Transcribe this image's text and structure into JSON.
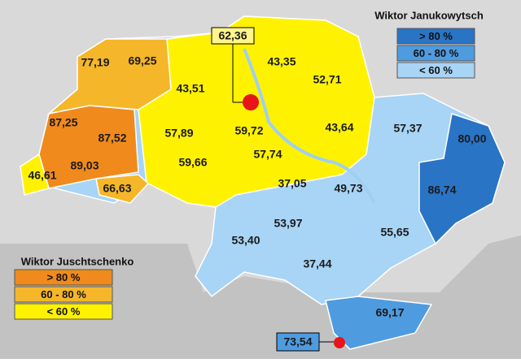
{
  "legends": [
    {
      "title": "Wiktor Janukowytsch",
      "items": [
        {
          "label": "> 80 %",
          "color": "#2a74c6"
        },
        {
          "label": "60 - 80 %",
          "color": "#4f9be0"
        },
        {
          "label": "< 60 %",
          "color": "#a8d4f5"
        }
      ]
    },
    {
      "title": "Wiktor Juschtschenko",
      "items": [
        {
          "label": "> 80 %",
          "color": "#f08a1c"
        },
        {
          "label": "60 - 80 %",
          "color": "#f5b62a"
        },
        {
          "label": "< 60 %",
          "color": "#fff200"
        }
      ]
    }
  ],
  "regions": [
    "77,19",
    "69,25",
    "87,25",
    "87,52",
    "89,03",
    "46,61",
    "66,63",
    "43,51",
    "57,89",
    "59,66",
    "59,72",
    "57,74",
    "37,05",
    "43,35",
    "52,71",
    "43,64",
    "57,37",
    "80,00",
    "86,74",
    "49,73",
    "53,97",
    "55,65",
    "53,40",
    "37,44",
    "69,17"
  ],
  "cities": [
    "62,36",
    "73,54"
  ]
}
